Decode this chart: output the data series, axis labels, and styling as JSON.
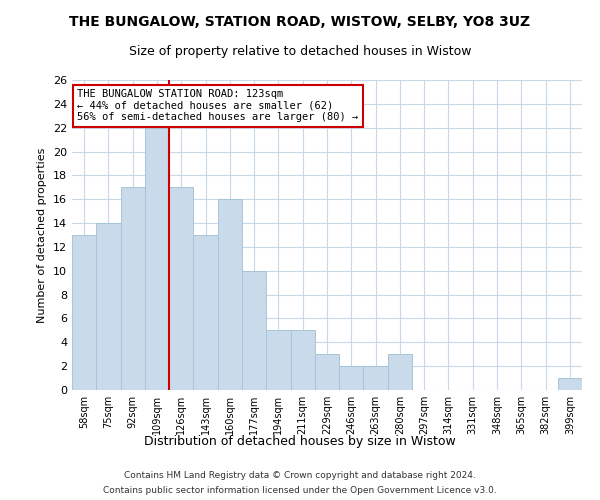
{
  "title": "THE BUNGALOW, STATION ROAD, WISTOW, SELBY, YO8 3UZ",
  "subtitle": "Size of property relative to detached houses in Wistow",
  "xlabel": "Distribution of detached houses by size in Wistow",
  "ylabel": "Number of detached properties",
  "categories": [
    "58sqm",
    "75sqm",
    "92sqm",
    "109sqm",
    "126sqm",
    "143sqm",
    "160sqm",
    "177sqm",
    "194sqm",
    "211sqm",
    "229sqm",
    "246sqm",
    "263sqm",
    "280sqm",
    "297sqm",
    "314sqm",
    "331sqm",
    "348sqm",
    "365sqm",
    "382sqm",
    "399sqm"
  ],
  "values": [
    13,
    14,
    17,
    22,
    17,
    13,
    16,
    10,
    5,
    5,
    3,
    2,
    2,
    3,
    0,
    0,
    0,
    0,
    0,
    0,
    1
  ],
  "bar_color": "#c9daea",
  "bar_edge_color": "#a8c4d8",
  "red_line_index": 4,
  "annotation_line1": "THE BUNGALOW STATION ROAD: 123sqm",
  "annotation_line2": "← 44% of detached houses are smaller (62)",
  "annotation_line3": "56% of semi-detached houses are larger (80) →",
  "ylim": [
    0,
    26
  ],
  "yticks": [
    0,
    2,
    4,
    6,
    8,
    10,
    12,
    14,
    16,
    18,
    20,
    22,
    24,
    26
  ],
  "background_color": "#ffffff",
  "grid_color": "#c8d8e8",
  "footer_line1": "Contains HM Land Registry data © Crown copyright and database right 2024.",
  "footer_line2": "Contains public sector information licensed under the Open Government Licence v3.0."
}
